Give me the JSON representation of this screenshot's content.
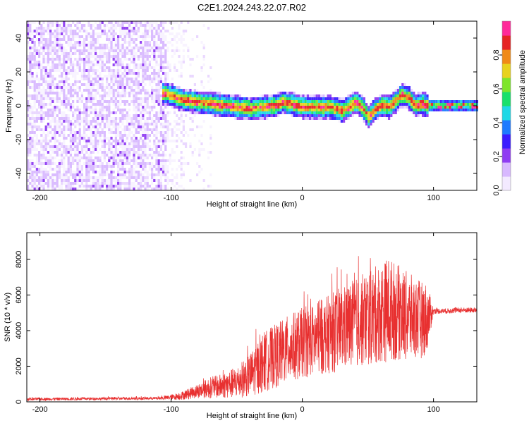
{
  "title": "C2E1.2024.243.22.07.R02",
  "colors": {
    "snr_line": "#e83030",
    "axis": "#000000",
    "colormap": [
      "#f3eaff",
      "#d8b8ff",
      "#8f3cf2",
      "#3a1cff",
      "#1f7bff",
      "#1fd8e6",
      "#19e06c",
      "#7ee52c",
      "#e8d21e",
      "#f08a18",
      "#e62424",
      "#ff2a9a"
    ]
  },
  "chart_data": [
    {
      "type": "heatmap",
      "name": "spectrogram",
      "xlabel": "Height of straight line (km)",
      "ylabel": "Frequency (Hz)",
      "xlim": [
        -210,
        133
      ],
      "ylim": [
        -50,
        50
      ],
      "x_ticks": [
        -200,
        -100,
        0,
        100
      ],
      "y_ticks": [
        -40,
        -20,
        0,
        20,
        40
      ],
      "colorbar": {
        "label": "Normalized spectral amplitude",
        "range": [
          0,
          1
        ],
        "ticks": [
          "0.0",
          "0.2",
          "0.4",
          "0.6",
          "0.8"
        ]
      },
      "noise_region": {
        "x_from": -210,
        "x_to": -105
      },
      "signal_center": {
        "x": [
          -105,
          -100,
          -95,
          -90,
          -80,
          -70,
          -60,
          -50,
          -40,
          -30,
          -20,
          -15,
          -10,
          0,
          10,
          20,
          30,
          35,
          40,
          45,
          50,
          55,
          60,
          65,
          70,
          75,
          80,
          85,
          90,
          95,
          100,
          110,
          120,
          133
        ],
        "y": [
          8,
          7,
          5,
          4,
          3,
          2,
          1,
          0,
          -1,
          0,
          1,
          3,
          2,
          0,
          0,
          0,
          -2,
          0,
          3,
          0,
          -6,
          -1,
          1,
          0,
          3,
          7,
          6,
          1,
          2,
          1,
          1,
          1,
          1,
          1
        ]
      }
    },
    {
      "type": "line",
      "name": "snr",
      "xlabel": "Height of straight line (km)",
      "ylabel": "SNR (10 * v/v)",
      "xlim": [
        -210,
        133
      ],
      "ylim": [
        0,
        9500
      ],
      "x_ticks": [
        -200,
        -100,
        0,
        100
      ],
      "y_ticks": [
        0,
        2000,
        4000,
        6000,
        8000
      ],
      "envelope": {
        "x": [
          -210,
          -150,
          -110,
          -100,
          -90,
          -80,
          -70,
          -60,
          -50,
          -40,
          -30,
          -20,
          -10,
          0,
          10,
          20,
          30,
          40,
          50,
          60,
          65,
          70,
          80,
          90,
          95,
          100,
          110,
          120,
          133
        ],
        "mean": [
          150,
          180,
          200,
          250,
          380,
          600,
          800,
          900,
          1100,
          1500,
          2200,
          2600,
          3000,
          3300,
          3500,
          3800,
          4100,
          4400,
          4700,
          5000,
          5200,
          5100,
          4800,
          4600,
          4700,
          5100,
          5100,
          5150,
          5150
        ],
        "amplitude": [
          80,
          80,
          80,
          150,
          250,
          400,
          600,
          700,
          900,
          1200,
          1700,
          1800,
          1900,
          2000,
          2000,
          2200,
          2400,
          2500,
          2700,
          2800,
          3000,
          2800,
          2500,
          2200,
          2000,
          150,
          150,
          150,
          150
        ]
      }
    }
  ]
}
